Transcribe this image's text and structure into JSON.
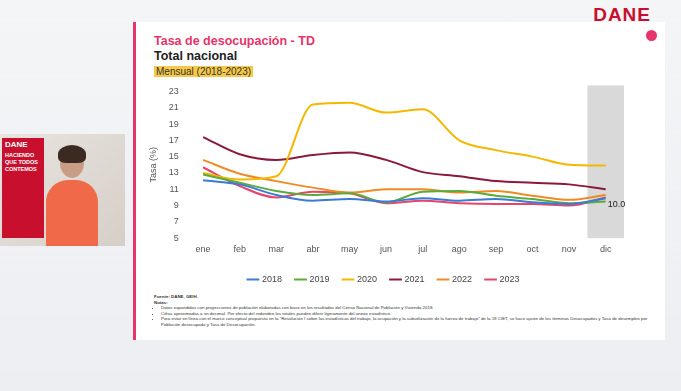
{
  "page": {
    "logo": "DANE",
    "webcam_brand": "DANE",
    "webcam_slogan": "HACIENDO QUE TODOS CONTEMOS"
  },
  "chart_data": {
    "type": "line",
    "title": "Tasa de desocupación - TD",
    "subtitle": "Total nacional",
    "period": "Mensual (2018-2023)",
    "y_label": "Tasa (%)",
    "categories": [
      "ene",
      "feb",
      "mar",
      "abr",
      "may",
      "jun",
      "jul",
      "ago",
      "sep",
      "oct",
      "nov",
      "dic"
    ],
    "series": [
      {
        "name": "2018",
        "color": "#3a7bd5",
        "values": [
          12.1,
          11.6,
          10.3,
          9.6,
          9.8,
          9.5,
          9.9,
          9.6,
          9.8,
          9.4,
          9.2,
          9.9
        ]
      },
      {
        "name": "2019",
        "color": "#5aaa3c",
        "values": [
          12.8,
          11.8,
          10.8,
          10.3,
          10.5,
          9.4,
          10.7,
          10.8,
          10.2,
          9.8,
          9.3,
          9.5
        ]
      },
      {
        "name": "2020",
        "color": "#f5b800",
        "values": [
          13.0,
          12.2,
          12.6,
          21.4,
          21.6,
          20.4,
          20.8,
          17.0,
          15.8,
          15.0,
          14.0,
          13.9
        ]
      },
      {
        "name": "2021",
        "color": "#8b1a3a",
        "values": [
          17.4,
          15.3,
          14.6,
          15.2,
          15.5,
          14.6,
          13.1,
          12.6,
          12.0,
          11.8,
          11.6,
          11.0
        ]
      },
      {
        "name": "2022",
        "color": "#f08a24",
        "values": [
          14.6,
          12.9,
          12.0,
          11.2,
          10.6,
          11.0,
          11.0,
          10.6,
          10.8,
          10.2,
          9.7,
          10.3
        ]
      },
      {
        "name": "2023",
        "color": "#e8456b",
        "values": [
          13.7,
          11.4,
          10.0,
          10.7,
          10.5,
          9.3,
          9.6,
          9.3,
          9.2,
          9.2,
          9.0,
          10.0
        ]
      }
    ],
    "ylim": [
      5,
      23
    ],
    "yticks": [
      5,
      7,
      9,
      11,
      13,
      15,
      17,
      19,
      21,
      23
    ],
    "grid": false,
    "legend": "bottom",
    "marker": "none",
    "line_style": "smooth",
    "annotations": [
      {
        "text": "10.0",
        "category": "dic",
        "value": 10.0
      }
    ],
    "source": "Fuente: DANE, GEIH.",
    "notes_title": "Notas:",
    "notes": [
      "Datos expandidos con proyecciones de población elaboradas con base en los resultados del Censo Nacional de Población y Vivienda 2018.",
      "Cifras aproximadas a un decimal. Por efecto del redondeo los totales pueden diferir ligeramente del anexo estadístico.",
      "Para estar en línea con el marco conceptual propuesto en la \"Resolución I sobre las estadísticas del trabajo, la ocupación y la subutilización de la fuerza de trabajo\" de la 19 CIET, se hace ajuste de los términos Desocupados y Tasa de desempleo por Población desocupada y Tasa de Desocupación."
    ]
  }
}
